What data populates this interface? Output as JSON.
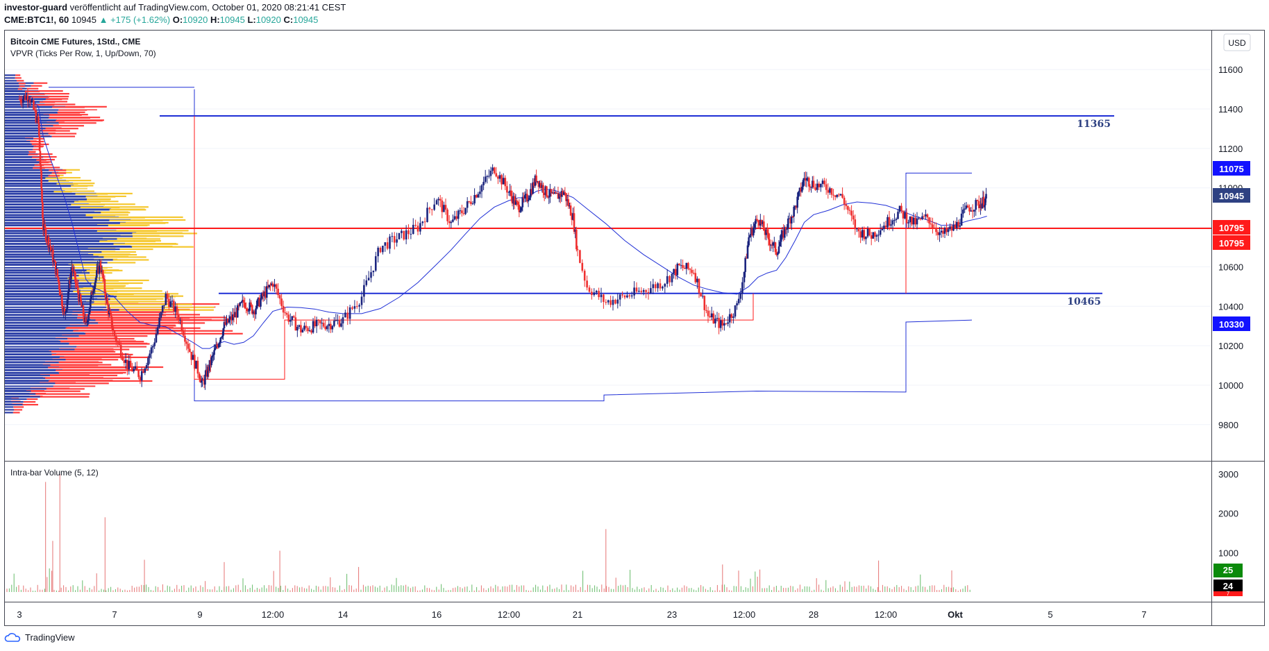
{
  "header": {
    "author": "investor-guard",
    "published_text": "veröffentlicht auf TradingView.com, October 01, 2020 08:21:41 CEST",
    "symbol": "CME:BTC1!, 60",
    "last": "10945",
    "change": "▲ +175 (+1.62%)",
    "o_label": "O:",
    "o_value": "10920",
    "h_label": "H:",
    "h_value": "10945",
    "l_label": "L:",
    "l_value": "10920",
    "c_label": "C:",
    "c_value": "10945"
  },
  "legend": {
    "title": "Bitcoin CME Futures, 1Std., CME",
    "indicator": "VPVR (Ticks Per Row, 1, Up/Down, 70)",
    "volume_indicator": "Intra-bar Volume (5, 12)"
  },
  "currency": "USD",
  "footer": {
    "brand": "TradingView"
  },
  "colors": {
    "up": "#1a237e",
    "down": "#ef2f2f",
    "blue_line": "#1f2fd6",
    "red_line": "#ff1a1a",
    "vp_up": "#2b3ea6",
    "vp_down": "#ff3d3d",
    "vp_up_va": "#f5c830",
    "vp_down_va": "#ff3d3d"
  },
  "chart_data": [
    {
      "type": "candlestick",
      "ylim": [
        9700,
        11700
      ],
      "y_ticks": [
        9800,
        10000,
        10200,
        10400,
        10600,
        10800,
        11000,
        11200,
        11400,
        11600
      ],
      "x_ticks": [
        "3",
        "7",
        "9",
        "12:00",
        "14",
        "16",
        "12:00",
        "21",
        "23",
        "12:00",
        "28",
        "12:00",
        "Okt",
        "5",
        "7"
      ],
      "close_path": [
        [
          3.0,
          11450
        ],
        [
          3.4,
          11470
        ],
        [
          3.8,
          11320
        ],
        [
          4.0,
          10800
        ],
        [
          4.3,
          10700
        ],
        [
          4.6,
          10550
        ],
        [
          4.9,
          10350
        ],
        [
          5.2,
          10600
        ],
        [
          5.5,
          10450
        ],
        [
          5.8,
          10300
        ],
        [
          6.1,
          10500
        ],
        [
          6.4,
          10620
        ],
        [
          6.7,
          10400
        ],
        [
          7.0,
          10250
        ],
        [
          7.3,
          10100
        ],
        [
          7.6,
          10050
        ],
        [
          7.9,
          10200
        ],
        [
          8.2,
          10450
        ],
        [
          8.5,
          10350
        ],
        [
          8.8,
          10150
        ],
        [
          9.1,
          10000
        ],
        [
          9.4,
          10100
        ],
        [
          9.7,
          10200
        ],
        [
          10.0,
          10300
        ],
        [
          10.4,
          10350
        ],
        [
          10.8,
          10420
        ],
        [
          11.2,
          10380
        ],
        [
          11.6,
          10450
        ],
        [
          12.0,
          10520
        ],
        [
          12.4,
          10350
        ],
        [
          12.8,
          10280
        ],
        [
          13.2,
          10300
        ],
        [
          13.6,
          10310
        ],
        [
          14.0,
          10330
        ],
        [
          14.4,
          10450
        ],
        [
          14.8,
          10700
        ],
        [
          15.2,
          10750
        ],
        [
          15.6,
          10800
        ],
        [
          16.0,
          10950
        ],
        [
          16.4,
          10820
        ],
        [
          16.8,
          10900
        ],
        [
          17.2,
          11000
        ],
        [
          17.6,
          11100
        ],
        [
          18.0,
          10980
        ],
        [
          18.4,
          10900
        ],
        [
          18.8,
          10950
        ],
        [
          19.2,
          11050
        ],
        [
          19.6,
          10980
        ],
        [
          20.0,
          10950
        ],
        [
          20.4,
          10980
        ],
        [
          20.8,
          10850
        ],
        [
          21.2,
          10500
        ],
        [
          21.6,
          10420
        ],
        [
          22.0,
          10450
        ],
        [
          22.4,
          10480
        ],
        [
          22.8,
          10520
        ],
        [
          23.2,
          10600
        ],
        [
          23.6,
          10580
        ],
        [
          24.0,
          10350
        ],
        [
          24.4,
          10300
        ],
        [
          24.8,
          10400
        ],
        [
          25.2,
          10750
        ],
        [
          25.6,
          10850
        ],
        [
          26.0,
          10750
        ],
        [
          26.4,
          10680
        ],
        [
          26.8,
          10800
        ],
        [
          27.2,
          10900
        ],
        [
          27.6,
          11050
        ],
        [
          28.0,
          11020
        ],
        [
          28.4,
          11000
        ],
        [
          28.8,
          10950
        ],
        [
          29.2,
          10780
        ],
        [
          29.6,
          10760
        ],
        [
          30.0,
          10820
        ],
        [
          30.4,
          10880
        ],
        [
          30.8,
          10820
        ],
        [
          31.2,
          10850
        ],
        [
          31.6,
          10760
        ],
        [
          32.0,
          10800
        ],
        [
          32.4,
          10900
        ],
        [
          32.8,
          10920
        ],
        [
          33.0,
          10945
        ]
      ],
      "levels": [
        {
          "label": "11365",
          "value": 11365,
          "color": "#1f2fd6"
        },
        {
          "label": "10795",
          "value": 10795,
          "color": "#ff1a1a"
        },
        {
          "label": "10465",
          "value": 10465,
          "color": "#1f2fd6"
        }
      ],
      "price_tags": [
        {
          "label": "11075",
          "value": 11075,
          "bg": "#1212ff"
        },
        {
          "label": "10945",
          "value": 10945,
          "bg": "#2e4182"
        },
        {
          "label": "10795",
          "value": 10795,
          "bg": "#ff1a1a"
        },
        {
          "label": "10795",
          "value": 10795,
          "bg": "#ff1a1a"
        },
        {
          "label": "10330",
          "value": 10330,
          "bg": "#1212ff"
        }
      ],
      "volume_profile": [
        [
          9900,
          5,
          6
        ],
        [
          9940,
          14,
          10
        ],
        [
          9980,
          20,
          30
        ],
        [
          10020,
          28,
          35
        ],
        [
          10060,
          32,
          60
        ],
        [
          10100,
          30,
          45
        ],
        [
          10140,
          34,
          40
        ],
        [
          10180,
          36,
          50
        ],
        [
          10220,
          40,
          45
        ],
        [
          10260,
          44,
          60
        ],
        [
          10300,
          48,
          90
        ],
        [
          10340,
          52,
          80
        ],
        [
          10380,
          56,
          70
        ],
        [
          10420,
          64,
          60
        ],
        [
          10460,
          62,
          40
        ],
        [
          10500,
          54,
          30
        ],
        [
          10540,
          50,
          22
        ],
        [
          10580,
          48,
          18
        ],
        [
          10620,
          52,
          20
        ],
        [
          10660,
          60,
          24
        ],
        [
          10700,
          70,
          30
        ],
        [
          10740,
          74,
          36
        ],
        [
          10780,
          72,
          40
        ],
        [
          10820,
          70,
          36
        ],
        [
          10860,
          64,
          30
        ],
        [
          10900,
          58,
          26
        ],
        [
          10940,
          52,
          22
        ],
        [
          10980,
          46,
          18
        ],
        [
          11020,
          38,
          14
        ],
        [
          11060,
          32,
          12
        ],
        [
          11100,
          26,
          10
        ],
        [
          11140,
          22,
          8
        ],
        [
          11180,
          18,
          6
        ],
        [
          11220,
          16,
          6
        ],
        [
          11260,
          20,
          10
        ],
        [
          11300,
          26,
          16
        ],
        [
          11340,
          30,
          28
        ],
        [
          11380,
          34,
          26
        ],
        [
          11420,
          30,
          18
        ],
        [
          11460,
          24,
          14
        ],
        [
          11500,
          16,
          10
        ],
        [
          11540,
          8,
          4
        ]
      ],
      "value_area": [
        10420,
        11060
      ]
    },
    {
      "type": "bar",
      "title": "Intra-bar Volume (5, 12)",
      "ylim": [
        0,
        3200
      ],
      "y_ticks": [
        1000,
        2000,
        3000
      ],
      "value_tags": [
        {
          "label": "25",
          "bg": "#0b8a0b"
        },
        {
          "label": "24",
          "bg": "#000000"
        },
        {
          "label": "7",
          "bg": "#ff1a1a"
        }
      ],
      "spikes": [
        [
          4.1,
          2800
        ],
        [
          4.4,
          1300
        ],
        [
          4.7,
          3000
        ],
        [
          6.6,
          1900
        ],
        [
          21.6,
          1600
        ],
        [
          12.2,
          1050
        ],
        [
          29.8,
          800
        ],
        [
          7.7,
          820
        ],
        [
          10.0,
          760
        ],
        [
          24.4,
          700
        ],
        [
          31.9,
          550
        ]
      ]
    }
  ]
}
